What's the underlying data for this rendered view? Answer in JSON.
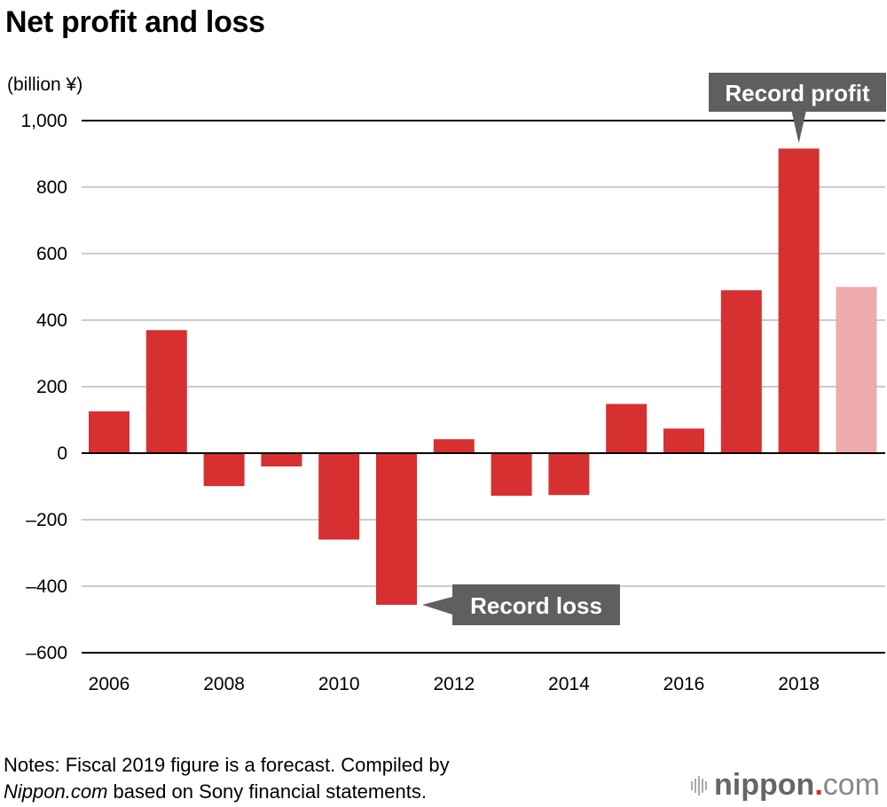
{
  "chart_data": {
    "type": "bar",
    "title": "Net profit and loss",
    "ylabel": "(billion ¥)",
    "xlabel": "",
    "ylim": [
      -600,
      1000
    ],
    "yticks": [
      1000,
      800,
      600,
      400,
      200,
      0,
      -200,
      -400,
      -600
    ],
    "ytick_labels": [
      "1,000",
      "800",
      "600",
      "400",
      "200",
      "0",
      "–200",
      "–400",
      "–600"
    ],
    "categories": [
      "2006",
      "2007",
      "2008",
      "2009",
      "2010",
      "2011",
      "2012",
      "2013",
      "2014",
      "2015",
      "2016",
      "2017",
      "2018",
      "2019"
    ],
    "xtick_labels": [
      "2006",
      "2008",
      "2010",
      "2012",
      "2014",
      "2016",
      "2018"
    ],
    "values": [
      126,
      370,
      -99,
      -40,
      -260,
      -456,
      42,
      -128,
      -126,
      148,
      74,
      490,
      916,
      500
    ],
    "forecast": [
      false,
      false,
      false,
      false,
      false,
      false,
      false,
      false,
      false,
      false,
      false,
      false,
      false,
      true
    ],
    "colors": {
      "actual": "#d63031",
      "forecast": "#eeabad",
      "callout": "#5f5f5f",
      "gridline": "#cccccc",
      "axis": "#000000"
    },
    "grid": true,
    "annotations": [
      {
        "text": "Record profit",
        "category": "2018",
        "value": 916
      },
      {
        "text": "Record loss",
        "category": "2011",
        "value": -456
      }
    ]
  },
  "notes": {
    "prefix": "Notes: Fiscal 2019 figure is a forecast. Compiled by",
    "source_name": "Nippon.com",
    "suffix": " based on Sony financial statements."
  },
  "logo": {
    "name": "nippon",
    "dot": ".",
    "tld": "com"
  }
}
